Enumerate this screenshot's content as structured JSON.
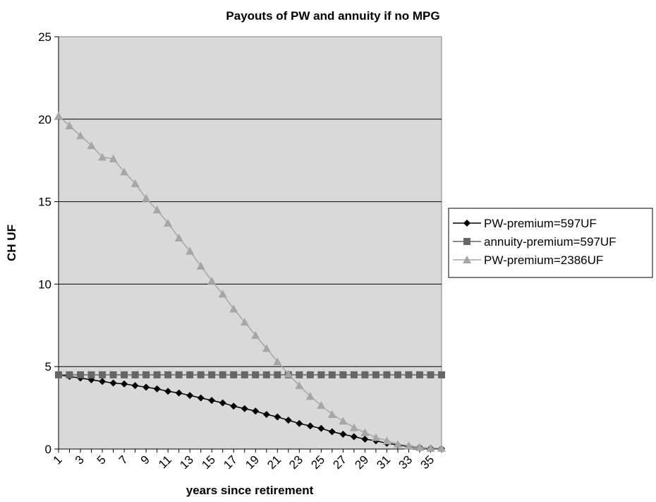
{
  "chart_data": {
    "type": "line",
    "title": "Payouts of PW and annuity if no MPG",
    "xlabel": "years since retirement",
    "ylabel": "CH UF",
    "ylim": [
      0,
      25
    ],
    "yticks": [
      0,
      5,
      10,
      15,
      20,
      25
    ],
    "x": [
      1,
      2,
      3,
      4,
      5,
      6,
      7,
      8,
      9,
      10,
      11,
      12,
      13,
      14,
      15,
      16,
      17,
      18,
      19,
      20,
      21,
      22,
      23,
      24,
      25,
      26,
      27,
      28,
      29,
      30,
      31,
      32,
      33,
      34,
      35,
      36
    ],
    "xtick_labels": [
      "1",
      "3",
      "5",
      "7",
      "9",
      "11",
      "13",
      "15",
      "17",
      "19",
      "21",
      "23",
      "25",
      "27",
      "29",
      "31",
      "33",
      "35"
    ],
    "grid": "horizontal",
    "legend_position": "right",
    "plot_background": "#d9d9d9",
    "series": [
      {
        "name": "PW-premium=597UF",
        "marker": "diamond",
        "color": "#000000",
        "values": [
          4.5,
          4.4,
          4.3,
          4.2,
          4.1,
          4.0,
          3.95,
          3.85,
          3.75,
          3.65,
          3.5,
          3.4,
          3.25,
          3.1,
          2.95,
          2.8,
          2.6,
          2.45,
          2.3,
          2.1,
          1.95,
          1.75,
          1.55,
          1.4,
          1.25,
          1.05,
          0.9,
          0.75,
          0.6,
          0.5,
          0.35,
          0.25,
          0.15,
          0.1,
          0.05,
          0.03
        ]
      },
      {
        "name": "annuity-premium=597UF",
        "marker": "square",
        "color": "#666666",
        "values": [
          4.5,
          4.5,
          4.5,
          4.5,
          4.5,
          4.5,
          4.5,
          4.5,
          4.5,
          4.5,
          4.5,
          4.5,
          4.5,
          4.5,
          4.5,
          4.5,
          4.5,
          4.5,
          4.5,
          4.5,
          4.5,
          4.5,
          4.5,
          4.5,
          4.5,
          4.5,
          4.5,
          4.5,
          4.5,
          4.5,
          4.5,
          4.5,
          4.5,
          4.5,
          4.5,
          4.5
        ]
      },
      {
        "name": "PW-premium=2386UF",
        "marker": "triangle",
        "color": "#a6a6a6",
        "values": [
          20.2,
          19.6,
          19.0,
          18.4,
          17.7,
          17.6,
          16.8,
          16.1,
          15.2,
          14.5,
          13.7,
          12.8,
          12.0,
          11.1,
          10.2,
          9.4,
          8.5,
          7.7,
          6.9,
          6.1,
          5.3,
          4.55,
          3.85,
          3.2,
          2.65,
          2.1,
          1.7,
          1.3,
          1.0,
          0.7,
          0.5,
          0.3,
          0.2,
          0.1,
          0.05,
          0.05
        ]
      }
    ]
  }
}
